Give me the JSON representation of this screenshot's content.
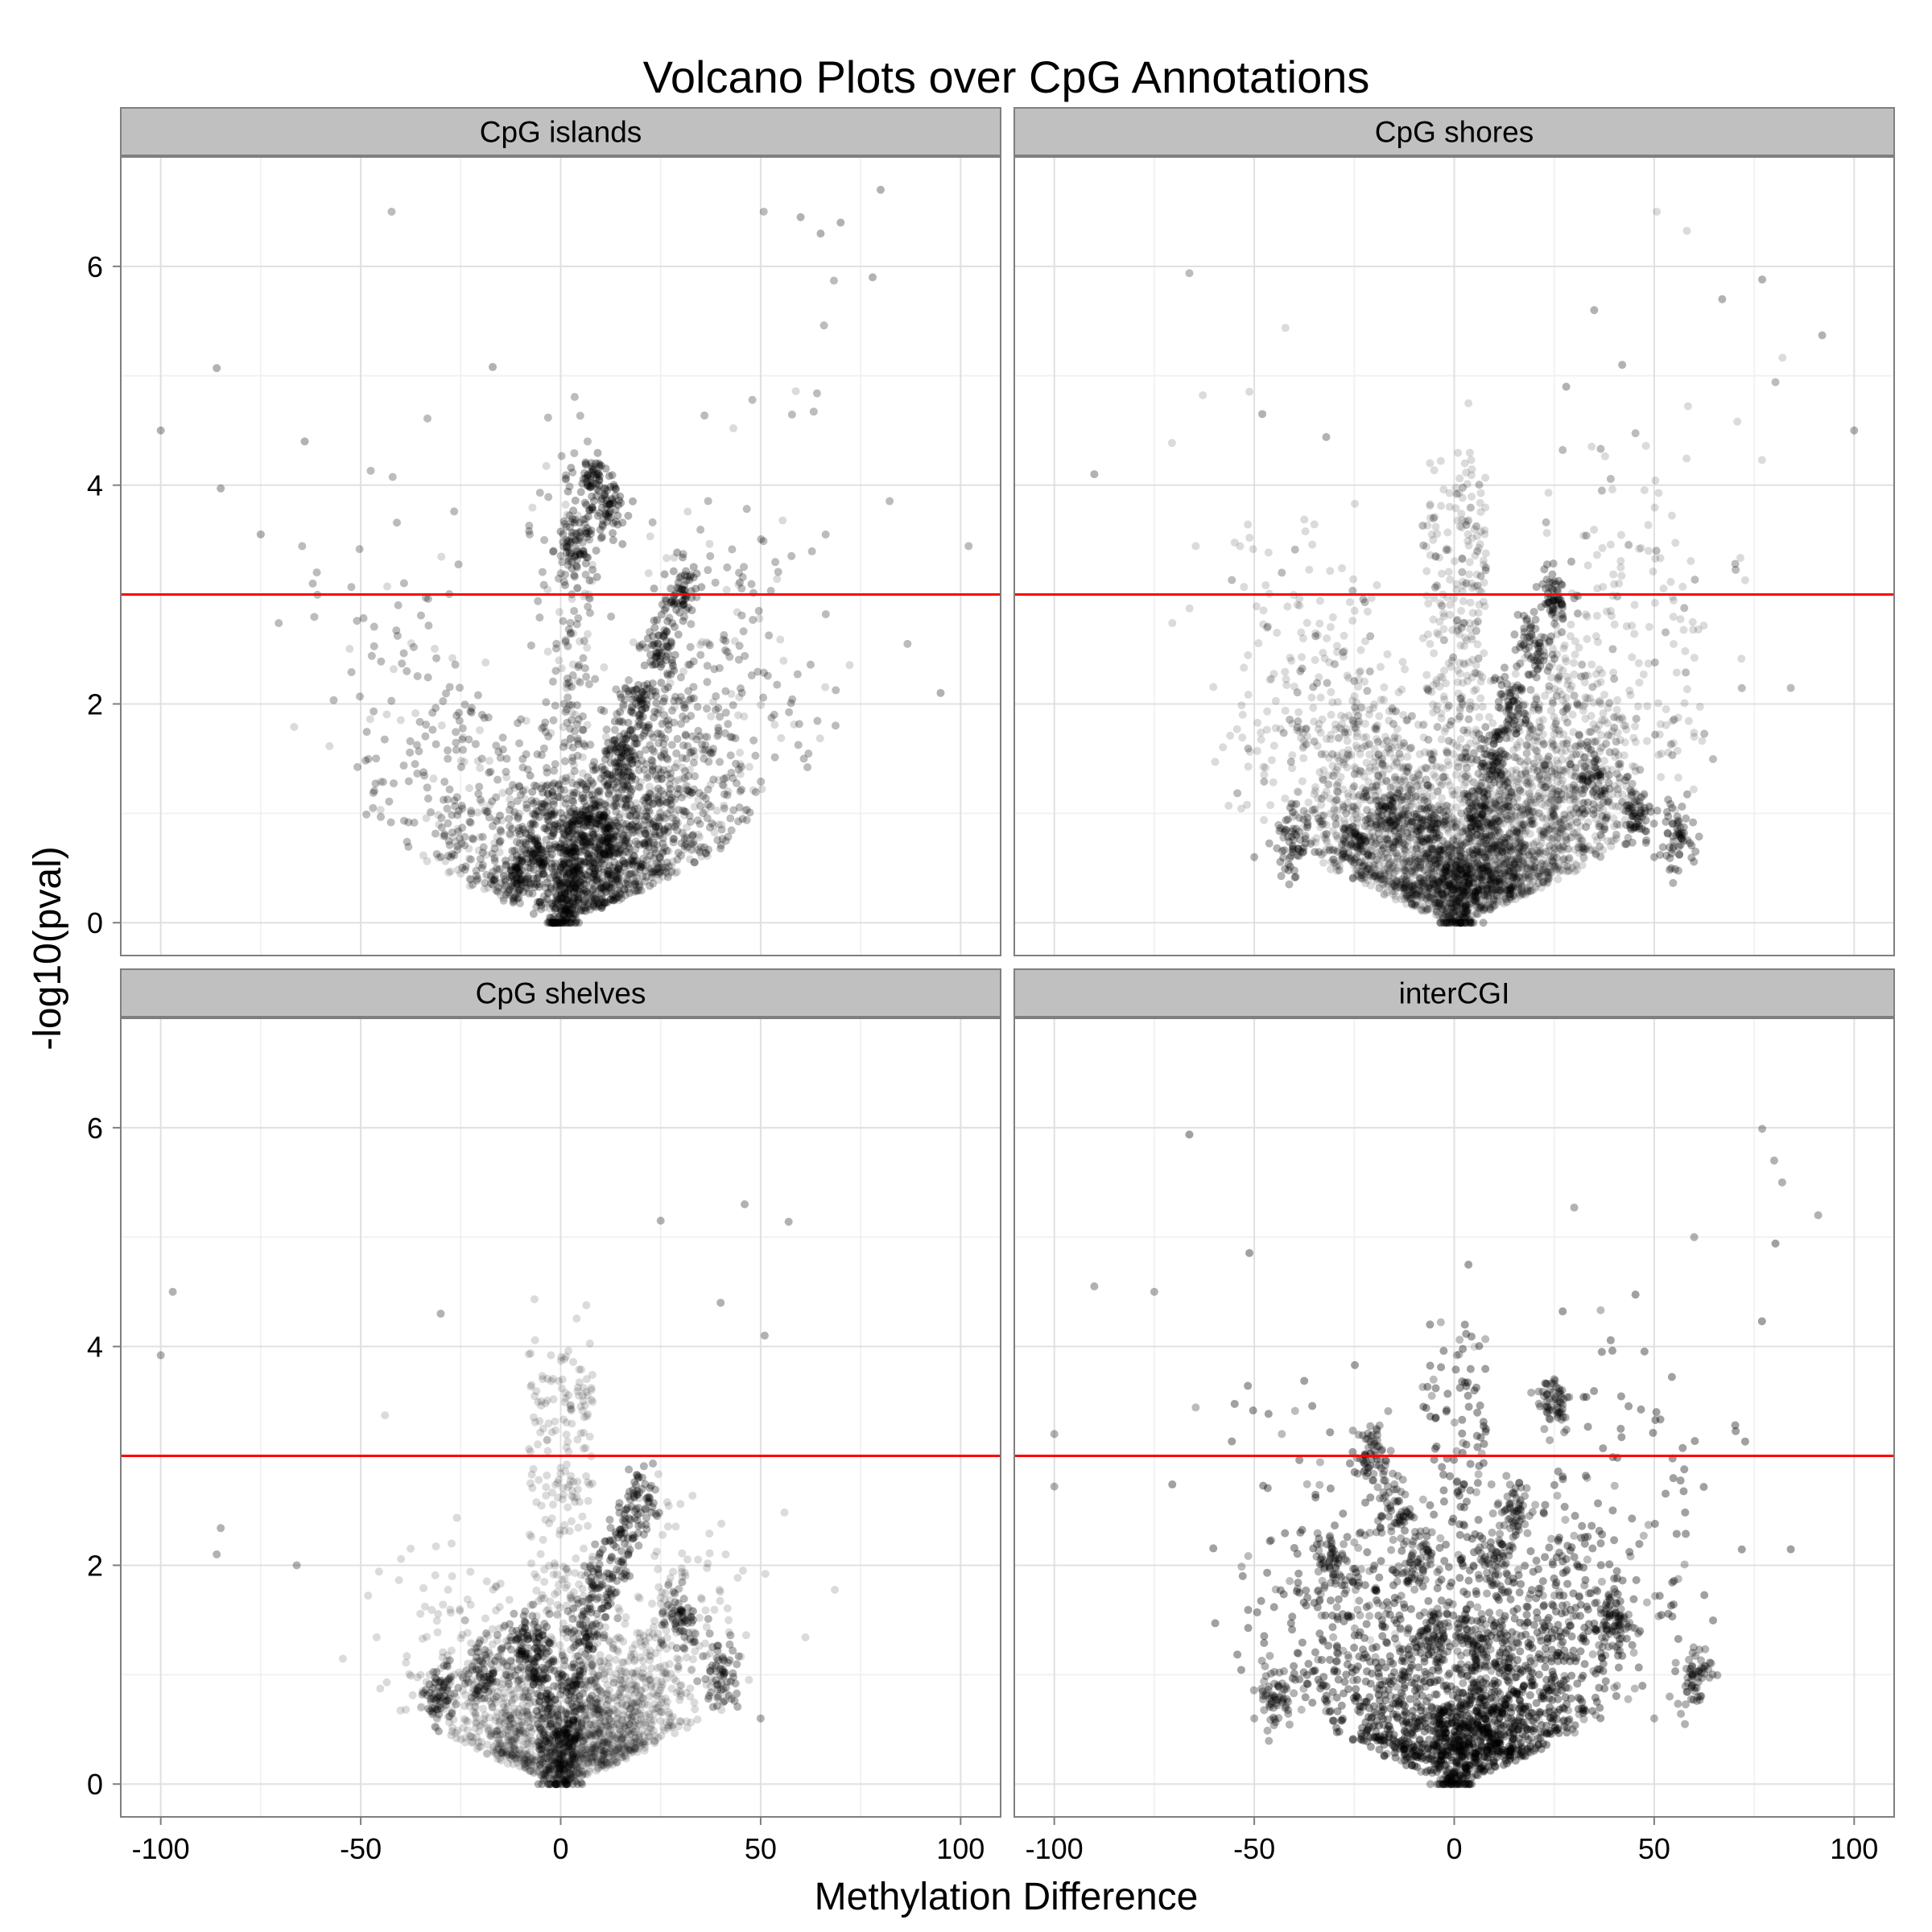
{
  "chart_data": {
    "type": "scatter",
    "title": "Volcano Plots over CpG Annotations",
    "xlabel": "Methylation Difference",
    "ylabel": "-log10(pval)",
    "xlim": [
      -110,
      110
    ],
    "ylim": [
      -0.3,
      7.0
    ],
    "x_ticks": [
      -100,
      -50,
      0,
      50,
      100
    ],
    "y_ticks": [
      0,
      2,
      4,
      6
    ],
    "x_tick_labels": [
      "-100",
      "-50",
      "0",
      "50",
      "100"
    ],
    "y_tick_labels": [
      "0",
      "2",
      "4",
      "6"
    ],
    "grid": true,
    "legend": "none",
    "threshold": 3,
    "point_color": "#000000",
    "threshold_color": "#ff0000",
    "strip_color": "#c0c0c0",
    "panels": [
      {
        "name": "CpG islands",
        "n": 3400,
        "dense_core": [
          [
            0,
            0.0
          ],
          [
            2,
            0.3
          ],
          [
            3,
            0.6
          ],
          [
            5,
            1.0
          ],
          [
            10,
            0.8
          ],
          [
            15,
            1.5
          ],
          [
            -5,
            0.6
          ],
          [
            -10,
            0.5
          ],
          [
            20,
            2.0
          ],
          [
            25,
            2.5
          ],
          [
            30,
            3.0
          ],
          [
            4,
            3.5
          ],
          [
            8,
            4.0
          ],
          [
            12,
            3.8
          ],
          [
            -3,
            1.0
          ]
        ],
        "notable": [
          [
            80,
            6.7
          ],
          [
            70,
            6.4
          ],
          [
            60,
            6.45
          ],
          [
            65,
            6.3
          ],
          [
            78,
            5.9
          ],
          [
            -86,
            5.07
          ],
          [
            -17,
            5.08
          ],
          [
            -64,
            4.4
          ],
          [
            -85,
            3.97
          ],
          [
            -75,
            3.55
          ],
          [
            -100,
            4.5
          ],
          [
            95,
            2.1
          ]
        ]
      },
      {
        "name": "CpG shores",
        "n": 4000,
        "dense_core": [
          [
            0,
            0.0
          ],
          [
            3,
            0.4
          ],
          [
            -3,
            0.4
          ],
          [
            6,
            1.0
          ],
          [
            -6,
            0.9
          ],
          [
            10,
            1.5
          ],
          [
            15,
            2.0
          ],
          [
            20,
            2.5
          ],
          [
            25,
            3.0
          ],
          [
            -15,
            1.0
          ],
          [
            -25,
            0.8
          ],
          [
            35,
            1.2
          ],
          [
            45,
            1.0
          ],
          [
            -40,
            0.7
          ],
          [
            55,
            0.8
          ]
        ],
        "notable": [
          [
            77,
            5.88
          ],
          [
            67,
            5.7
          ],
          [
            92,
            5.37
          ],
          [
            100,
            4.5
          ],
          [
            -48,
            4.65
          ],
          [
            -32,
            4.44
          ],
          [
            -90,
            4.1
          ],
          [
            50,
            0.6
          ],
          [
            -50,
            0.6
          ],
          [
            28,
            4.9
          ],
          [
            42,
            5.1
          ],
          [
            35,
            5.6
          ]
        ]
      },
      {
        "name": "CpG shelves",
        "n": 1800,
        "dense_core": [
          [
            0,
            0.0
          ],
          [
            2,
            0.4
          ],
          [
            -2,
            0.4
          ],
          [
            4,
            0.9
          ],
          [
            -4,
            0.9
          ],
          [
            6,
            1.4
          ],
          [
            -6,
            1.3
          ],
          [
            10,
            1.8
          ],
          [
            -10,
            1.2
          ],
          [
            15,
            2.2
          ],
          [
            20,
            2.6
          ],
          [
            -20,
            1.0
          ],
          [
            30,
            1.5
          ],
          [
            -30,
            0.8
          ],
          [
            40,
            1.0
          ]
        ],
        "notable": [
          [
            -100,
            3.92
          ],
          [
            -97,
            4.5
          ],
          [
            46,
            5.3
          ],
          [
            25,
            5.15
          ],
          [
            57,
            5.14
          ],
          [
            51,
            4.1
          ],
          [
            -85,
            2.34
          ],
          [
            -86,
            2.1
          ],
          [
            -30,
            4.3
          ],
          [
            50,
            0.6
          ],
          [
            -66,
            2.0
          ],
          [
            40,
            4.4
          ]
        ]
      },
      {
        "name": "interCGI",
        "n": 5200,
        "dense_core": [
          [
            0,
            0.0
          ],
          [
            3,
            0.5
          ],
          [
            -3,
            0.5
          ],
          [
            5,
            1.2
          ],
          [
            -5,
            1.3
          ],
          [
            10,
            2.0
          ],
          [
            -10,
            2.0
          ],
          [
            15,
            2.5
          ],
          [
            -15,
            2.5
          ],
          [
            25,
            3.5
          ],
          [
            -30,
            2.0
          ],
          [
            40,
            1.5
          ],
          [
            -45,
            0.8
          ],
          [
            60,
            1.0
          ],
          [
            -20,
            3.0
          ]
        ],
        "notable": [
          [
            77,
            5.99
          ],
          [
            80,
            5.7
          ],
          [
            82,
            5.5
          ],
          [
            91,
            5.2
          ],
          [
            -90,
            4.55
          ],
          [
            -100,
            3.2
          ],
          [
            -100,
            2.72
          ],
          [
            60,
            5.0
          ],
          [
            50,
            0.6
          ],
          [
            -50,
            0.6
          ],
          [
            -75,
            4.5
          ],
          [
            30,
            5.27
          ]
        ]
      }
    ]
  }
}
